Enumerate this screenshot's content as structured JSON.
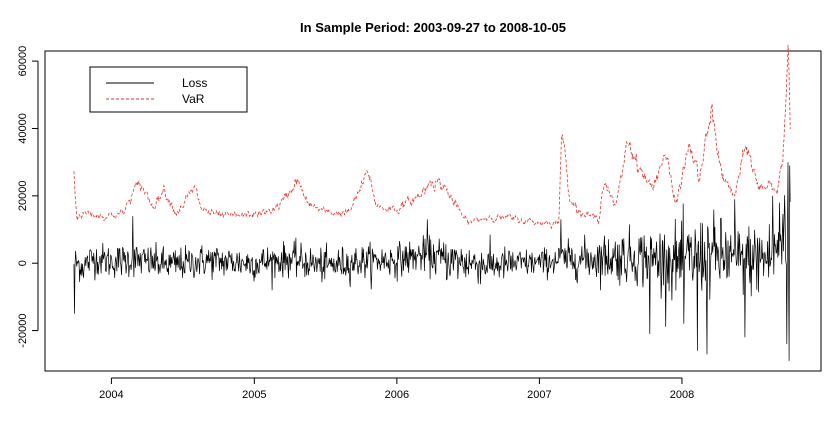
{
  "chart_data": {
    "type": "line",
    "title": "In Sample Period: 2003-09-27 to 2008-10-05",
    "xlabel": "",
    "ylabel": "",
    "x_range": [
      "2003-09-27",
      "2008-10-05"
    ],
    "xlim": [
      "2003-07-15",
      "2008-12-22"
    ],
    "ylim": [
      -32000,
      63000
    ],
    "x_ticks": [
      "2004",
      "2005",
      "2006",
      "2007",
      "2008"
    ],
    "y_ticks": [
      "-20000",
      "0",
      "20000",
      "40000",
      "60000"
    ],
    "y_tick_values": [
      -20000,
      0,
      20000,
      40000,
      60000
    ],
    "grid": false,
    "legend_position": "top-left",
    "series": [
      {
        "name": "Loss",
        "color": "#000000",
        "style": "solid",
        "points": [
          [
            "2003-09-27",
            500
          ],
          [
            "2003-10-20",
            -1000
          ],
          [
            "2003-11-15",
            1500
          ],
          [
            "2004-01-01",
            500
          ],
          [
            "2004-03-01",
            1000
          ],
          [
            "2004-06-01",
            -500
          ],
          [
            "2004-09-01",
            800
          ],
          [
            "2005-01-01",
            0
          ],
          [
            "2005-04-01",
            1200
          ],
          [
            "2005-07-01",
            -800
          ],
          [
            "2005-10-01",
            500
          ],
          [
            "2006-01-01",
            1000
          ],
          [
            "2006-03-15",
            2500
          ],
          [
            "2006-06-01",
            500
          ],
          [
            "2006-09-01",
            -500
          ],
          [
            "2007-01-01",
            200
          ],
          [
            "2007-03-01",
            1000
          ],
          [
            "2007-06-01",
            1500
          ],
          [
            "2007-09-01",
            2000
          ],
          [
            "2008-01-01",
            500
          ],
          [
            "2008-03-15",
            2500
          ],
          [
            "2008-06-01",
            1000
          ],
          [
            "2008-08-15",
            1500
          ],
          [
            "2008-09-15",
            8000
          ],
          [
            "2008-10-05",
            10000
          ]
        ],
        "amplitude": [
          [
            "2003-09-27",
            4500
          ],
          [
            "2004-03-01",
            4500
          ],
          [
            "2006-03-01",
            4500
          ],
          [
            "2006-06-01",
            6000
          ],
          [
            "2007-01-01",
            3500
          ],
          [
            "2007-06-01",
            6000
          ],
          [
            "2007-10-01",
            8000
          ],
          [
            "2008-03-01",
            11000
          ],
          [
            "2008-06-01",
            9000
          ],
          [
            "2008-09-01",
            11000
          ],
          [
            "2008-10-05",
            20000
          ]
        ],
        "extremes": [
          [
            "2003-09-29",
            -15000
          ],
          [
            "2004-02-25",
            14000
          ],
          [
            "2006-03-20",
            13000
          ],
          [
            "2007-02-25",
            13000
          ],
          [
            "2007-10-10",
            -21000
          ],
          [
            "2008-01-05",
            -18000
          ],
          [
            "2008-02-10",
            -26000
          ],
          [
            "2008-03-05",
            -27000
          ],
          [
            "2008-05-15",
            19000
          ],
          [
            "2008-06-10",
            -22000
          ],
          [
            "2008-08-20",
            20000
          ],
          [
            "2008-09-25",
            -24000
          ],
          [
            "2008-09-29",
            30000
          ],
          [
            "2008-10-01",
            -29000
          ],
          [
            "2008-10-03",
            29000
          ],
          [
            "2008-10-05",
            16000
          ]
        ]
      },
      {
        "name": "VaR",
        "color": "#e8322d",
        "style": "dashed",
        "points": [
          [
            "2003-09-27",
            27000
          ],
          [
            "2003-10-01",
            19000
          ],
          [
            "2003-10-05",
            14000
          ],
          [
            "2003-11-01",
            15000
          ],
          [
            "2003-12-15",
            14000
          ],
          [
            "2004-02-01",
            15000
          ],
          [
            "2004-03-01",
            22000
          ],
          [
            "2004-03-20",
            23000
          ],
          [
            "2004-04-15",
            17000
          ],
          [
            "2004-05-15",
            22000
          ],
          [
            "2004-06-15",
            15000
          ],
          [
            "2004-08-01",
            22000
          ],
          [
            "2004-08-20",
            16000
          ],
          [
            "2004-10-01",
            14000
          ],
          [
            "2004-12-01",
            14000
          ],
          [
            "2005-02-01",
            15000
          ],
          [
            "2005-03-15",
            18000
          ],
          [
            "2005-04-20",
            25000
          ],
          [
            "2005-05-15",
            18000
          ],
          [
            "2005-07-01",
            15000
          ],
          [
            "2005-09-01",
            15000
          ],
          [
            "2005-10-20",
            27000
          ],
          [
            "2005-11-10",
            17000
          ],
          [
            "2006-01-01",
            16000
          ],
          [
            "2006-03-01",
            20000
          ],
          [
            "2006-04-01",
            25000
          ],
          [
            "2006-05-01",
            23000
          ],
          [
            "2006-06-01",
            17000
          ],
          [
            "2006-07-01",
            12000
          ],
          [
            "2006-09-01",
            14000
          ],
          [
            "2006-11-01",
            13000
          ],
          [
            "2007-01-01",
            12000
          ],
          [
            "2007-02-20",
            12000
          ],
          [
            "2007-02-27",
            40000
          ],
          [
            "2007-03-20",
            20000
          ],
          [
            "2007-04-15",
            15000
          ],
          [
            "2007-06-01",
            13000
          ],
          [
            "2007-06-15",
            25000
          ],
          [
            "2007-07-15",
            16000
          ],
          [
            "2007-08-15",
            37000
          ],
          [
            "2007-09-15",
            28000
          ],
          [
            "2007-10-15",
            22000
          ],
          [
            "2007-11-20",
            33000
          ],
          [
            "2007-12-15",
            17000
          ],
          [
            "2008-01-20",
            35000
          ],
          [
            "2008-02-15",
            25000
          ],
          [
            "2008-03-17",
            45000
          ],
          [
            "2008-04-15",
            25000
          ],
          [
            "2008-05-15",
            20000
          ],
          [
            "2008-06-15",
            35000
          ],
          [
            "2008-07-15",
            22000
          ],
          [
            "2008-08-15",
            24000
          ],
          [
            "2008-09-01",
            22000
          ],
          [
            "2008-09-15",
            30000
          ],
          [
            "2008-09-25",
            48000
          ],
          [
            "2008-09-29",
            60000
          ],
          [
            "2008-10-01",
            55000
          ],
          [
            "2008-10-05",
            35000
          ]
        ]
      }
    ]
  }
}
